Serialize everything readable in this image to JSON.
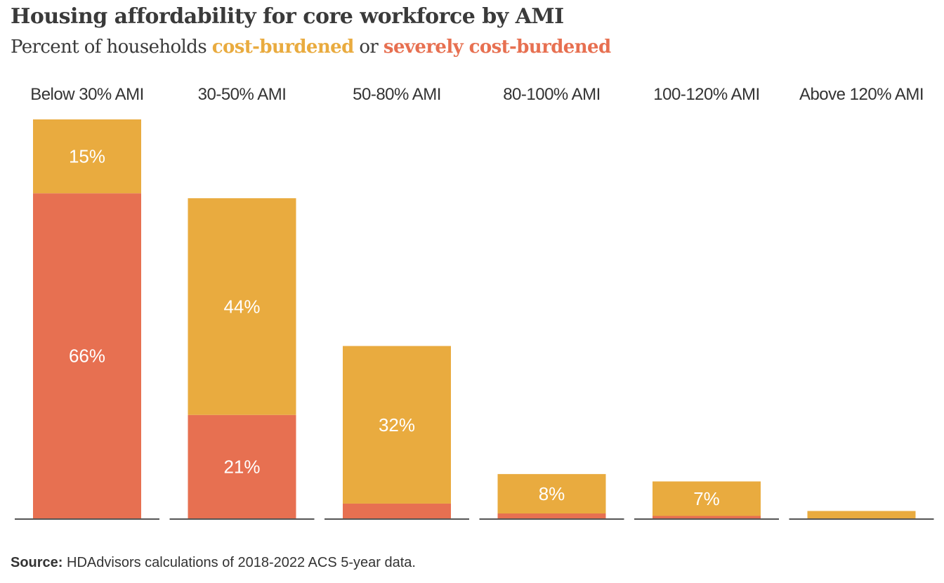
{
  "header": {
    "title": "Housing affordability for core workforce by AMI",
    "subtitle_prefix": "Percent of households ",
    "subtitle_cost": "cost-burdened",
    "subtitle_or": " or ",
    "subtitle_severe": "severely cost-burdened"
  },
  "chart_data": {
    "type": "bar",
    "stacked": true,
    "title": "Housing affordability for core workforce by AMI",
    "subtitle": "Percent of households cost-burdened or severely cost-burdened",
    "categories": [
      "Below 30% AMI",
      "30-50% AMI",
      "50-80% AMI",
      "80-100% AMI",
      "100-120% AMI",
      "Above 120% AMI"
    ],
    "series": [
      {
        "name": "severely cost-burdened",
        "color": "#e77051",
        "values": [
          66,
          21,
          3,
          1,
          0.5,
          0
        ],
        "labels": [
          "66%",
          "21%",
          "",
          "",
          "",
          ""
        ]
      },
      {
        "name": "cost-burdened",
        "color": "#e9ab3f",
        "values": [
          15,
          44,
          32,
          8,
          7,
          1.5
        ],
        "labels": [
          "15%",
          "44%",
          "32%",
          "8%",
          "7%",
          ""
        ]
      }
    ],
    "ylim": [
      0,
      81
    ],
    "grid": false,
    "legend": "subtitle"
  },
  "source": {
    "label": "Source:",
    "text": " HDAdvisors calculations of 2018-2022 ACS 5-year data."
  }
}
